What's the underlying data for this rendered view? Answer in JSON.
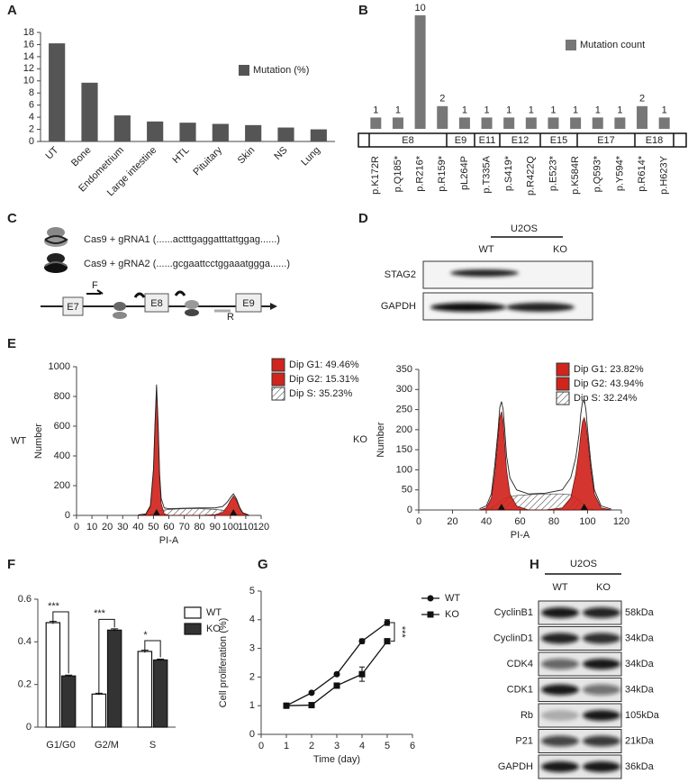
{
  "panel_labels": [
    "A",
    "B",
    "C",
    "D",
    "E",
    "F",
    "G",
    "H"
  ],
  "chart_data": [
    {
      "type": "bar",
      "categories": [
        "UT",
        "Bone",
        "Endometrium",
        "Large intestine",
        "HTL",
        "Pituitary",
        "Skin",
        "NS",
        "Lung"
      ],
      "values": [
        16.2,
        9.7,
        4.3,
        3.3,
        3.1,
        2.9,
        2.7,
        2.3,
        2.0
      ],
      "color": "#555555",
      "legend_label": "Mutation (%)",
      "legend": "upper right",
      "ylim": [
        0,
        18
      ],
      "yticks": [
        0,
        2,
        4,
        6,
        8,
        10,
        12,
        14,
        16,
        18
      ]
    },
    {
      "type": "bar",
      "categories": [
        "p.K172R",
        "p.Q185*",
        "p.R216*",
        "p.R159*",
        "pL264P",
        "p.T335A",
        "p.S419*",
        "p.R422Q",
        "p.E523*",
        "p.K584R",
        "p.Q593*",
        "p.Y594*",
        "p.R614*",
        "p.H623Y"
      ],
      "values": [
        1,
        1,
        10,
        2,
        1,
        1,
        1,
        1,
        1,
        1,
        1,
        1,
        2,
        1
      ],
      "color": "#777777",
      "legend_label": "Mutation count",
      "legend": "upper right",
      "exons": [
        "E8",
        "E9",
        "E11",
        "E12",
        "E15",
        "E17",
        "E18"
      ]
    },
    {
      "type": "area",
      "label": "WT",
      "xlabel": "PI-A",
      "ylabel": "Number",
      "legend": "outside right",
      "x": [
        40,
        45,
        48,
        50,
        51,
        52,
        53,
        54,
        55,
        57,
        60,
        70,
        80,
        90,
        95,
        98,
        100,
        102,
        104,
        106,
        108,
        112
      ],
      "series": [
        {
          "name": "Dip S: 35.23%",
          "color": "#444444",
          "fill": "hatch",
          "values": [
            0,
            0,
            5,
            10,
            15,
            20,
            25,
            30,
            33,
            36,
            40,
            45,
            45,
            40,
            35,
            25,
            15,
            10,
            5,
            2,
            0,
            0
          ]
        },
        {
          "name": "Dip G1: 49.46%",
          "color": "#d0241c",
          "fill": "solid",
          "values": [
            0,
            5,
            60,
            300,
            600,
            860,
            600,
            250,
            80,
            10,
            0,
            0,
            0,
            0,
            0,
            0,
            0,
            0,
            0,
            0,
            0,
            0
          ]
        },
        {
          "name": "Dip G2: 15.31%",
          "color": "#d0241c",
          "fill": "solid",
          "values": [
            0,
            0,
            0,
            0,
            0,
            0,
            0,
            0,
            0,
            0,
            0,
            0,
            0,
            5,
            20,
            60,
            100,
            130,
            100,
            50,
            15,
            0
          ]
        },
        {
          "color": "#222222",
          "fill": "none",
          "values": [
            3,
            10,
            65,
            310,
            615,
            880,
            625,
            280,
            115,
            50,
            45,
            48,
            50,
            50,
            60,
            90,
            120,
            145,
            110,
            55,
            18,
            3
          ]
        }
      ],
      "xlim": [
        0,
        120
      ],
      "xticks": [
        0,
        10,
        20,
        30,
        40,
        50,
        60,
        70,
        80,
        90,
        100,
        110,
        120
      ],
      "ylim": [
        0,
        1000
      ],
      "yticks": [
        0,
        200,
        400,
        600,
        800,
        1000
      ]
    },
    {
      "type": "area",
      "label": "KO",
      "xlabel": "PI-A",
      "ylabel": "Number",
      "legend": "upper right",
      "x": [
        36,
        40,
        43,
        45,
        47,
        48,
        49,
        50,
        51,
        52,
        54,
        58,
        65,
        75,
        85,
        90,
        93,
        95,
        96,
        97,
        98,
        99,
        100,
        102,
        104,
        108,
        114
      ],
      "series": [
        {
          "name": "Dip S: 32.24%",
          "color": "#444444",
          "fill": "hatch",
          "values": [
            0,
            0,
            5,
            10,
            15,
            20,
            22,
            25,
            28,
            30,
            33,
            36,
            38,
            40,
            40,
            38,
            30,
            25,
            20,
            15,
            10,
            8,
            5,
            3,
            1,
            0,
            0
          ]
        },
        {
          "name": "Dip G1: 23.82%",
          "color": "#d0241c",
          "fill": "solid",
          "values": [
            0,
            5,
            30,
            90,
            180,
            230,
            245,
            220,
            160,
            100,
            40,
            10,
            0,
            0,
            0,
            0,
            0,
            0,
            0,
            0,
            0,
            0,
            0,
            0,
            0,
            0,
            0
          ]
        },
        {
          "name": "Dip G2: 43.94%",
          "color": "#d0241c",
          "fill": "solid",
          "values": [
            0,
            0,
            0,
            0,
            0,
            0,
            0,
            0,
            0,
            0,
            0,
            0,
            0,
            0,
            5,
            30,
            90,
            150,
            190,
            220,
            230,
            215,
            180,
            100,
            40,
            5,
            0
          ]
        },
        {
          "color": "#222222",
          "fill": "none",
          "values": [
            3,
            10,
            40,
            110,
            200,
            255,
            270,
            250,
            195,
            135,
            80,
            50,
            40,
            42,
            50,
            80,
            130,
            190,
            240,
            270,
            275,
            250,
            200,
            115,
            50,
            10,
            2
          ]
        }
      ],
      "xlim": [
        0,
        120
      ],
      "xticks": [
        0,
        20,
        40,
        60,
        80,
        100,
        120
      ],
      "ylim": [
        0,
        350
      ],
      "yticks": [
        0,
        50,
        100,
        150,
        200,
        250,
        300,
        350
      ]
    },
    {
      "type": "bar",
      "categories": [
        "G1/G0",
        "G2/M",
        "S"
      ],
      "legend": "outside right",
      "series": [
        {
          "name": "WT",
          "color": "#ffffff",
          "values": [
            0.49,
            0.155,
            0.355
          ],
          "errors": [
            0.006,
            0.004,
            0.006
          ]
        },
        {
          "name": "KO",
          "color": "#333333",
          "values": [
            0.24,
            0.455,
            0.315
          ],
          "errors": [
            0.004,
            0.006,
            0.004
          ]
        }
      ],
      "annotations": [
        "***",
        "***",
        "*"
      ],
      "ylim": [
        0,
        0.6
      ],
      "yticks": [
        0,
        0.2,
        0.4,
        0.6
      ]
    },
    {
      "type": "line",
      "xlabel": "Time (day)",
      "ylabel": "Cell proliferation (%)",
      "legend": "outside right",
      "annotation": "***",
      "x": [
        1,
        2,
        3,
        4,
        5
      ],
      "series": [
        {
          "name": "WT",
          "color": "#111111",
          "marker": "circle",
          "values": [
            1.0,
            1.45,
            2.1,
            3.25,
            3.9
          ],
          "errors": [
            0.03,
            0.04,
            0.05,
            0.08,
            0.1
          ]
        },
        {
          "name": "KO",
          "color": "#111111",
          "marker": "square",
          "values": [
            1.0,
            1.02,
            1.7,
            2.1,
            3.25
          ],
          "errors": [
            0.03,
            0.03,
            0.05,
            0.25,
            0.05
          ]
        }
      ],
      "xlim": [
        0,
        6
      ],
      "xticks": [
        0,
        1,
        2,
        3,
        4,
        5,
        6
      ],
      "ylim": [
        0,
        5
      ],
      "yticks": [
        0,
        1,
        2,
        3,
        4,
        5
      ]
    }
  ],
  "diagram_c": {
    "guides": [
      "Cas9 + gRNA1 (......actttgaggatttattggag......)",
      "Cas9 + gRNA2 (......gcgaattcctggaaatggga......)"
    ],
    "exons": [
      "E7",
      "E8",
      "E9"
    ],
    "primers": [
      "F",
      "R"
    ]
  },
  "blot_d": {
    "cell_line": "U2OS",
    "lanes": [
      "WT",
      "KO"
    ],
    "proteins": [
      "STAG2",
      "GAPDH"
    ]
  },
  "blot_h": {
    "cell_line": "U2OS",
    "lanes": [
      "WT",
      "KO"
    ],
    "proteins": [
      {
        "name": "CyclinB1",
        "size": "58kDa"
      },
      {
        "name": "CyclinD1",
        "size": "34kDa"
      },
      {
        "name": "CDK4",
        "size": "34kDa"
      },
      {
        "name": "CDK1",
        "size": "34kDa"
      },
      {
        "name": "Rb",
        "size": "105kDa"
      },
      {
        "name": "P21",
        "size": "21kDa"
      },
      {
        "name": "GAPDH",
        "size": "36kDa"
      }
    ]
  }
}
